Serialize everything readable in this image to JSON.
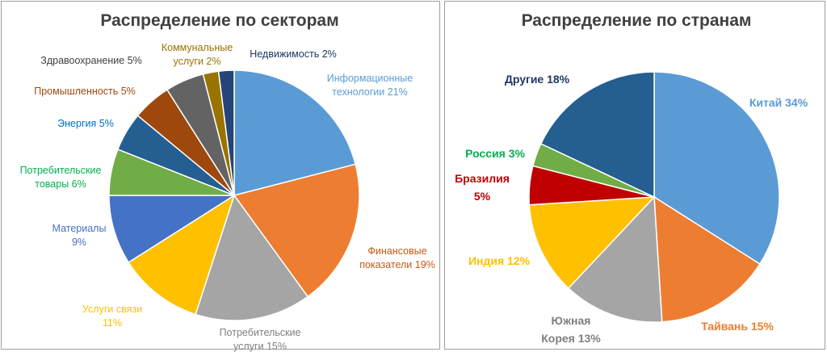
{
  "chart_data": [
    {
      "type": "pie",
      "title": "Распределение по секторам",
      "slices": [
        {
          "label": [
            "Информационные",
            "технологии 21%"
          ],
          "value": 21,
          "color": "#5b9bd5",
          "label_color": "#5b9bd5"
        },
        {
          "label": [
            "Финансовые",
            "показатели 19%"
          ],
          "value": 19,
          "color": "#ed7d31",
          "label_color": "#c55a11"
        },
        {
          "label": [
            "Потребительские",
            "услуги 15%"
          ],
          "value": 15,
          "color": "#a5a5a5",
          "label_color": "#7f7f7f"
        },
        {
          "label": [
            "Услуги связи",
            "11%"
          ],
          "value": 11,
          "color": "#ffc000",
          "label_color": "#ffc000"
        },
        {
          "label": [
            "Материалы",
            "9%"
          ],
          "value": 9,
          "color": "#4472c4",
          "label_color": "#4472c4"
        },
        {
          "label": [
            "Потребительские",
            "товары 6%"
          ],
          "value": 6,
          "color": "#70ad47",
          "label_color": "#00b050"
        },
        {
          "label": [
            "Энергия 5%"
          ],
          "value": 5,
          "color": "#255e91",
          "label_color": "#0070c0"
        },
        {
          "label": [
            "Промышленность 5%"
          ],
          "value": 5,
          "color": "#9e480e",
          "label_color": "#9e480e"
        },
        {
          "label": [
            "Здравоохранение 5%"
          ],
          "value": 5,
          "color": "#636363",
          "label_color": "#404040"
        },
        {
          "label": [
            "Коммунальные",
            "услуги 2%"
          ],
          "value": 2,
          "color": "#997300",
          "label_color": "#997300"
        },
        {
          "label": [
            "Недвижимость 2%"
          ],
          "value": 2,
          "color": "#264478",
          "label_color": "#1f3864"
        }
      ]
    },
    {
      "type": "pie",
      "title": "Распределение по странам",
      "slices": [
        {
          "label": [
            "Китай 34%"
          ],
          "value": 34,
          "color": "#5b9bd5",
          "label_color": "#5b9bd5"
        },
        {
          "label": [
            "Тайвань 15%"
          ],
          "value": 15,
          "color": "#ed7d31",
          "label_color": "#ed7d31"
        },
        {
          "label": [
            "Южная",
            "Корея 13%"
          ],
          "value": 13,
          "color": "#a5a5a5",
          "label_color": "#7f7f7f"
        },
        {
          "label": [
            "Индия 12%"
          ],
          "value": 12,
          "color": "#ffc000",
          "label_color": "#ffc000"
        },
        {
          "label": [
            "Бразилия",
            "5%"
          ],
          "value": 5,
          "color": "#c00000",
          "label_color": "#c00000"
        },
        {
          "label": [
            "Россия 3%"
          ],
          "value": 3,
          "color": "#70ad47",
          "label_color": "#00b050"
        },
        {
          "label": [
            "Другие 18%"
          ],
          "value": 18,
          "color": "#255e91",
          "label_color": "#1f3864"
        }
      ]
    }
  ]
}
